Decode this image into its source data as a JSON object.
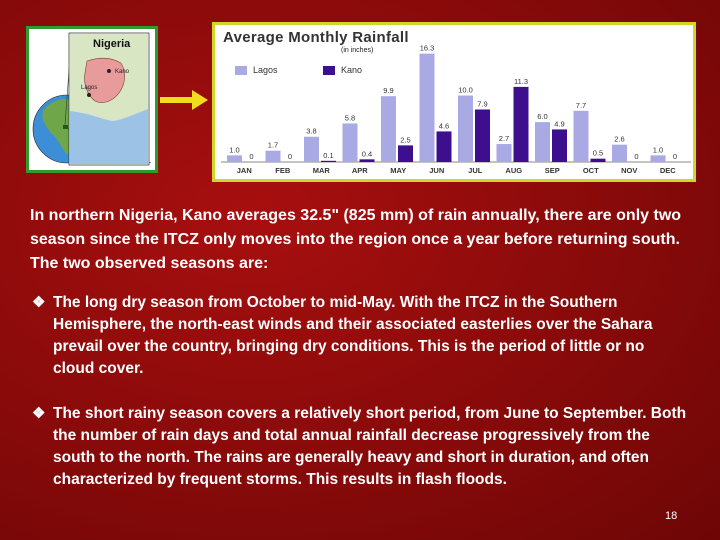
{
  "map": {
    "title": "Nigeria",
    "cities": [
      "Kano",
      "Lagos"
    ]
  },
  "chart_data": {
    "type": "bar",
    "title": "Average Monthly Rainfall",
    "subtitle": "(in inches)",
    "categories": [
      "JAN",
      "FEB",
      "MAR",
      "APR",
      "MAY",
      "JUN",
      "JUL",
      "AUG",
      "SEP",
      "OCT",
      "NOV",
      "DEC"
    ],
    "series": [
      {
        "name": "Lagos",
        "color": "#a9a9e4",
        "values": [
          1.0,
          1.7,
          3.8,
          5.8,
          9.9,
          16.3,
          10.0,
          2.7,
          6.0,
          7.7,
          2.6,
          1.0
        ]
      },
      {
        "name": "Kano",
        "color": "#3d0f8e",
        "values": [
          0,
          0,
          0.1,
          0.4,
          2.5,
          4.6,
          7.9,
          11.3,
          4.9,
          0.5,
          0,
          0
        ]
      }
    ],
    "value_labels": {
      "Lagos": [
        "1.0",
        "1.7",
        "3.8",
        "5.8",
        "9.9",
        "16.3",
        "10.0",
        "2.7",
        "6.0",
        "7.7",
        "2.6",
        "1.0"
      ],
      "Kano": [
        "0",
        "0",
        "0.1",
        "0.4",
        "2.5",
        "4.6",
        "7.9",
        "11.3",
        "4.9",
        "0.5",
        "0",
        "0"
      ]
    },
    "ylim": [
      0,
      17
    ],
    "legend_position": "top-left",
    "grid": false
  },
  "text": {
    "intro": "In northern Nigeria, Kano averages 32.5\" (825 mm) of rain annually, there are only two season since the ITCZ only moves into the region once a year before returning south. The two observed seasons are:",
    "bullet_marker": "❖",
    "bullet1": "The long dry season from October to mid-May. With the ITCZ in the Southern Hemisphere, the north-east winds and their associated easterlies over the Sahara prevail over the country, bringing dry conditions. This is the period of little or no cloud cover.",
    "bullet2": "The short rainy season covers a relatively short period, from June to September. Both the number of rain days and total annual rainfall decrease progressively from the south to the north. The rains are generally heavy and short in duration, and often characterized by frequent storms. This results in flash floods.",
    "page_number": "18"
  }
}
